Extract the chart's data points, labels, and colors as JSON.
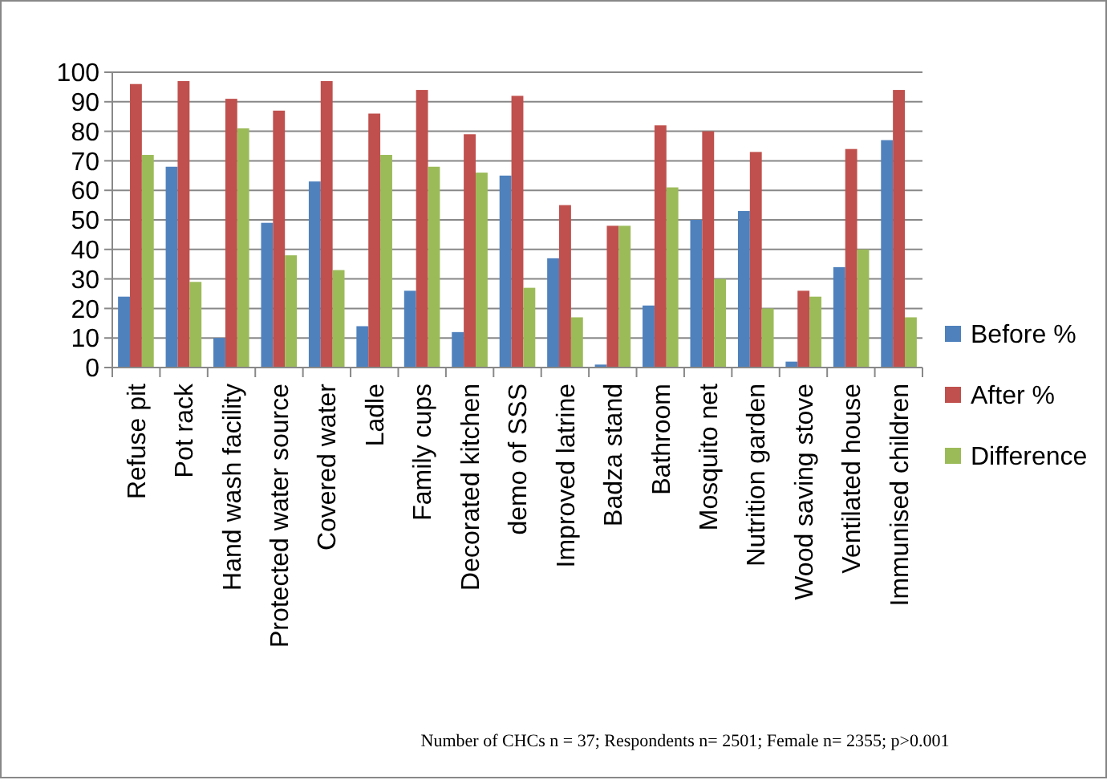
{
  "chart_data": {
    "type": "bar",
    "categories": [
      "Refuse pit",
      "Pot rack",
      "Hand wash facility",
      "Protected water source",
      "Covered water",
      "Ladle",
      "Family cups",
      "Decorated kitchen",
      "demo of SSS",
      "Improved latrine",
      "Badza stand",
      "Bathroom",
      "Mosquito net",
      "Nutrition garden",
      "Wood saving stove",
      "Ventilated house",
      "Immunised children"
    ],
    "series": [
      {
        "name": "Before %",
        "color": "#4f81bd",
        "values": [
          24,
          68,
          10,
          49,
          63,
          14,
          26,
          12,
          65,
          37,
          1,
          21,
          50,
          53,
          2,
          34,
          77
        ]
      },
      {
        "name": "After %",
        "color": "#c0504d",
        "values": [
          96,
          97,
          91,
          87,
          97,
          86,
          94,
          79,
          92,
          55,
          48,
          82,
          80,
          73,
          26,
          74,
          94
        ]
      },
      {
        "name": "Difference",
        "color": "#9bbb59",
        "values": [
          72,
          29,
          81,
          38,
          33,
          72,
          68,
          66,
          27,
          17,
          48,
          61,
          30,
          20,
          24,
          40,
          17
        ]
      }
    ],
    "ylim": [
      0,
      100
    ],
    "yticks": [
      0,
      10,
      20,
      30,
      40,
      50,
      60,
      70,
      80,
      90,
      100
    ],
    "grid": "y",
    "legend": "right",
    "annotations": [
      "Number of CHCs n = 37;  Respondents  n= 2501;  Female n= 2355; p>0.001"
    ]
  }
}
